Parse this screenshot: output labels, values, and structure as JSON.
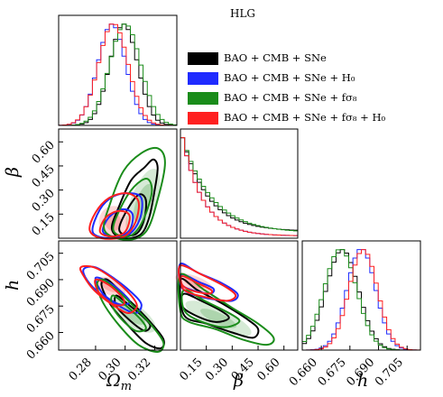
{
  "title": "HLG",
  "colors": {
    "black": "#000000",
    "blue": "#1f2bff",
    "green": "#1a8c1a",
    "red": "#ff2020"
  },
  "legend": [
    {
      "label": "BAO + CMB + SNe",
      "color": "#000000"
    },
    {
      "label": "BAO + CMB + SNe + H₀",
      "color": "#1f2bff"
    },
    {
      "label": "BAO + CMB + SNe + fσ₈",
      "color": "#1a8c1a"
    },
    {
      "label": "BAO + CMB + SNe + fσ₈ + H₀",
      "color": "#ff2020"
    }
  ],
  "chart_data": [
    {
      "type": "line",
      "panel": "Omega_m marginal",
      "param": "Ωm",
      "xlim": [
        0.255,
        0.335
      ],
      "series": [
        {
          "name": "BAO + CMB + SNe",
          "mean": 0.299,
          "sigma": 0.0095
        },
        {
          "name": "BAO + CMB + SNe + H₀",
          "mean": 0.291,
          "sigma": 0.0095
        },
        {
          "name": "BAO + CMB + SNe + fσ₈",
          "mean": 0.3,
          "sigma": 0.0105
        },
        {
          "name": "BAO + CMB + SNe + fσ₈ + H₀",
          "mean": 0.292,
          "sigma": 0.01
        }
      ]
    },
    {
      "type": "line",
      "panel": "beta marginal",
      "param": "β",
      "xlim": [
        0.0,
        0.68
      ],
      "series": [
        {
          "name": "BAO + CMB + SNe",
          "start": 0.3,
          "decay": 0.15
        },
        {
          "name": "BAO + CMB + SNe + H₀",
          "start": 1.0,
          "decay": 0.12
        },
        {
          "name": "BAO + CMB + SNe + fσ₈",
          "start": 0.38,
          "decay": 0.17
        },
        {
          "name": "BAO + CMB + SNe + fσ₈ + H₀",
          "start": 1.0,
          "decay": 0.12
        }
      ]
    },
    {
      "type": "line",
      "panel": "h marginal",
      "param": "h",
      "xlim": [
        0.65,
        0.712
      ],
      "series": [
        {
          "name": "BAO + CMB + SNe",
          "mean": 0.671,
          "sigma": 0.0085
        },
        {
          "name": "BAO + CMB + SNe + H₀",
          "mean": 0.681,
          "sigma": 0.0075
        },
        {
          "name": "BAO + CMB + SNe + fσ₈",
          "mean": 0.67,
          "sigma": 0.0085
        },
        {
          "name": "BAO + CMB + SNe + fσ₈ + H₀",
          "mean": 0.682,
          "sigma": 0.0075
        }
      ]
    },
    {
      "type": "scatter",
      "panel": "beta vs Omega_m",
      "xlim": [
        0.255,
        0.335
      ],
      "ylim": [
        0.0,
        0.68
      ],
      "contours": [
        {
          "name": "BAO + CMB + SNe",
          "points": [
            [
              0.291,
              0.06
            ],
            [
              0.296,
              0.2
            ],
            [
              0.304,
              0.36
            ],
            [
              0.313,
              0.44
            ],
            [
              0.319,
              0.49
            ],
            [
              0.322,
              0.44
            ],
            [
              0.32,
              0.3
            ],
            [
              0.316,
              0.12
            ],
            [
              0.31,
              0.02
            ],
            [
              0.298,
              0.0
            ]
          ]
        },
        {
          "name": "BAO + CMB + SNe",
          "points": [
            [
              0.296,
              0.06
            ],
            [
              0.301,
              0.17
            ],
            [
              0.309,
              0.27
            ],
            [
              0.314,
              0.24
            ],
            [
              0.313,
              0.12
            ],
            [
              0.308,
              0.03
            ],
            [
              0.3,
              0.02
            ]
          ]
        },
        {
          "name": "BAO + CMB + SNe + H₀",
          "points": [
            [
              0.278,
              0.04
            ],
            [
              0.283,
              0.18
            ],
            [
              0.292,
              0.26
            ],
            [
              0.303,
              0.28
            ],
            [
              0.311,
              0.25
            ],
            [
              0.31,
              0.12
            ],
            [
              0.302,
              0.02
            ],
            [
              0.288,
              0.0
            ]
          ]
        },
        {
          "name": "BAO + CMB + SNe + H₀",
          "points": [
            [
              0.285,
              0.04
            ],
            [
              0.289,
              0.13
            ],
            [
              0.298,
              0.18
            ],
            [
              0.305,
              0.15
            ],
            [
              0.303,
              0.05
            ],
            [
              0.294,
              0.01
            ]
          ]
        },
        {
          "name": "BAO + CMB + SNe + fσ₈",
          "points": [
            [
              0.286,
              0.05
            ],
            [
              0.29,
              0.22
            ],
            [
              0.299,
              0.42
            ],
            [
              0.311,
              0.53
            ],
            [
              0.322,
              0.56
            ],
            [
              0.327,
              0.47
            ],
            [
              0.322,
              0.24
            ],
            [
              0.314,
              0.04
            ],
            [
              0.3,
              -0.01
            ]
          ]
        },
        {
          "name": "BAO + CMB + SNe + fσ₈",
          "points": [
            [
              0.292,
              0.05
            ],
            [
              0.297,
              0.19
            ],
            [
              0.306,
              0.32
            ],
            [
              0.315,
              0.37
            ],
            [
              0.318,
              0.28
            ],
            [
              0.311,
              0.09
            ],
            [
              0.302,
              0.01
            ]
          ]
        },
        {
          "name": "BAO + CMB + SNe + fσ₈ + H₀",
          "points": [
            [
              0.276,
              0.05
            ],
            [
              0.28,
              0.16
            ],
            [
              0.289,
              0.25
            ],
            [
              0.301,
              0.28
            ],
            [
              0.309,
              0.23
            ],
            [
              0.307,
              0.1
            ],
            [
              0.299,
              0.01
            ],
            [
              0.284,
              0.0
            ]
          ]
        },
        {
          "name": "BAO + CMB + SNe + fσ₈ + H₀",
          "points": [
            [
              0.283,
              0.04
            ],
            [
              0.287,
              0.13
            ],
            [
              0.296,
              0.17
            ],
            [
              0.303,
              0.14
            ],
            [
              0.3,
              0.04
            ],
            [
              0.291,
              0.01
            ]
          ]
        }
      ]
    },
    {
      "type": "scatter",
      "panel": "h vs Omega_m",
      "xlim": [
        0.255,
        0.335
      ],
      "ylim": [
        0.65,
        0.712
      ],
      "contours": [
        {
          "name": "BAO + CMB + SNe",
          "points": [
            [
              0.288,
              0.69
            ],
            [
              0.298,
              0.682
            ],
            [
              0.308,
              0.674
            ],
            [
              0.318,
              0.665
            ],
            [
              0.326,
              0.656
            ],
            [
              0.324,
              0.651
            ],
            [
              0.314,
              0.654
            ],
            [
              0.302,
              0.664
            ],
            [
              0.29,
              0.676
            ],
            [
              0.284,
              0.687
            ]
          ]
        },
        {
          "name": "BAO + CMB + SNe",
          "points": [
            [
              0.294,
              0.681
            ],
            [
              0.302,
              0.676
            ],
            [
              0.312,
              0.669
            ],
            [
              0.317,
              0.664
            ],
            [
              0.313,
              0.661
            ],
            [
              0.303,
              0.667
            ],
            [
              0.294,
              0.675
            ]
          ]
        },
        {
          "name": "BAO + CMB + SNe + H₀",
          "points": [
            [
              0.272,
              0.696
            ],
            [
              0.28,
              0.697
            ],
            [
              0.292,
              0.691
            ],
            [
              0.304,
              0.683
            ],
            [
              0.311,
              0.676
            ],
            [
              0.307,
              0.671
            ],
            [
              0.296,
              0.675
            ],
            [
              0.283,
              0.682
            ],
            [
              0.274,
              0.69
            ]
          ]
        },
        {
          "name": "BAO + CMB + SNe + H₀",
          "points": [
            [
              0.28,
              0.691
            ],
            [
              0.29,
              0.688
            ],
            [
              0.3,
              0.681
            ],
            [
              0.303,
              0.677
            ],
            [
              0.296,
              0.676
            ],
            [
              0.285,
              0.682
            ]
          ]
        },
        {
          "name": "BAO + CMB + SNe + fσ₈",
          "points": [
            [
              0.285,
              0.69
            ],
            [
              0.296,
              0.683
            ],
            [
              0.308,
              0.673
            ],
            [
              0.319,
              0.663
            ],
            [
              0.326,
              0.654
            ],
            [
              0.322,
              0.649
            ],
            [
              0.309,
              0.653
            ],
            [
              0.296,
              0.664
            ],
            [
              0.285,
              0.677
            ],
            [
              0.281,
              0.687
            ]
          ]
        },
        {
          "name": "BAO + CMB + SNe + fσ₈",
          "points": [
            [
              0.292,
              0.681
            ],
            [
              0.301,
              0.675
            ],
            [
              0.311,
              0.667
            ],
            [
              0.314,
              0.662
            ],
            [
              0.307,
              0.661
            ],
            [
              0.297,
              0.668
            ],
            [
              0.291,
              0.676
            ]
          ]
        },
        {
          "name": "BAO + CMB + SNe + fσ₈ + H₀",
          "points": [
            [
              0.27,
              0.697
            ],
            [
              0.279,
              0.697
            ],
            [
              0.291,
              0.691
            ],
            [
              0.303,
              0.682
            ],
            [
              0.308,
              0.675
            ],
            [
              0.302,
              0.671
            ],
            [
              0.291,
              0.676
            ],
            [
              0.279,
              0.684
            ],
            [
              0.272,
              0.692
            ]
          ]
        },
        {
          "name": "BAO + CMB + SNe + fσ₈ + H₀",
          "points": [
            [
              0.28,
              0.69
            ],
            [
              0.289,
              0.687
            ],
            [
              0.298,
              0.68
            ],
            [
              0.299,
              0.676
            ],
            [
              0.292,
              0.676
            ],
            [
              0.282,
              0.683
            ]
          ]
        }
      ]
    },
    {
      "type": "scatter",
      "panel": "h vs beta",
      "xlim": [
        0.0,
        0.68
      ],
      "ylim": [
        0.65,
        0.712
      ],
      "contours": [
        {
          "name": "BAO + CMB + SNe",
          "points": [
            [
              0.0,
              0.69
            ],
            [
              0.1,
              0.684
            ],
            [
              0.25,
              0.676
            ],
            [
              0.38,
              0.668
            ],
            [
              0.45,
              0.662
            ],
            [
              0.42,
              0.657
            ],
            [
              0.3,
              0.66
            ],
            [
              0.15,
              0.665
            ],
            [
              0.02,
              0.67
            ]
          ]
        },
        {
          "name": "BAO + CMB + SNe",
          "points": [
            [
              0.02,
              0.682
            ],
            [
              0.12,
              0.678
            ],
            [
              0.24,
              0.672
            ],
            [
              0.28,
              0.668
            ],
            [
              0.2,
              0.666
            ],
            [
              0.08,
              0.67
            ],
            [
              0.01,
              0.675
            ]
          ]
        },
        {
          "name": "BAO + CMB + SNe + H₀",
          "points": [
            [
              0.0,
              0.699
            ],
            [
              0.1,
              0.694
            ],
            [
              0.24,
              0.688
            ],
            [
              0.33,
              0.682
            ],
            [
              0.3,
              0.678
            ],
            [
              0.18,
              0.679
            ],
            [
              0.06,
              0.682
            ],
            [
              0.0,
              0.687
            ]
          ]
        },
        {
          "name": "BAO + CMB + SNe + H₀",
          "points": [
            [
              0.01,
              0.693
            ],
            [
              0.1,
              0.689
            ],
            [
              0.19,
              0.685
            ],
            [
              0.17,
              0.682
            ],
            [
              0.07,
              0.684
            ],
            [
              0.01,
              0.687
            ]
          ]
        },
        {
          "name": "BAO + CMB + SNe + fσ₈",
          "points": [
            [
              0.0,
              0.693
            ],
            [
              0.14,
              0.684
            ],
            [
              0.3,
              0.674
            ],
            [
              0.45,
              0.665
            ],
            [
              0.54,
              0.657
            ],
            [
              0.5,
              0.653
            ],
            [
              0.36,
              0.656
            ],
            [
              0.2,
              0.662
            ],
            [
              0.05,
              0.666
            ],
            [
              0.0,
              0.672
            ]
          ]
        },
        {
          "name": "BAO + CMB + SNe + fσ₈",
          "points": [
            [
              0.02,
              0.684
            ],
            [
              0.14,
              0.678
            ],
            [
              0.3,
              0.67
            ],
            [
              0.34,
              0.666
            ],
            [
              0.25,
              0.663
            ],
            [
              0.1,
              0.667
            ],
            [
              0.02,
              0.673
            ]
          ]
        },
        {
          "name": "BAO + CMB + SNe + fσ₈ + H₀",
          "points": [
            [
              0.0,
              0.698
            ],
            [
              0.12,
              0.693
            ],
            [
              0.26,
              0.686
            ],
            [
              0.32,
              0.681
            ],
            [
              0.27,
              0.678
            ],
            [
              0.15,
              0.68
            ],
            [
              0.04,
              0.683
            ],
            [
              0.0,
              0.688
            ]
          ]
        },
        {
          "name": "BAO + CMB + SNe + fσ₈ + H₀",
          "points": [
            [
              0.01,
              0.692
            ],
            [
              0.1,
              0.688
            ],
            [
              0.18,
              0.684
            ],
            [
              0.16,
              0.682
            ],
            [
              0.06,
              0.684
            ],
            [
              0.01,
              0.687
            ]
          ]
        }
      ]
    }
  ],
  "ticks": {
    "om": [
      "0.28",
      "0.30",
      "0.32"
    ],
    "beta": [
      "0.15",
      "0.30",
      "0.45",
      "0.60"
    ],
    "h": [
      "0.660",
      "0.675",
      "0.690",
      "0.705"
    ]
  },
  "labels": {
    "om": "Ω",
    "om_sub": "m",
    "beta": "β",
    "h": "h"
  }
}
